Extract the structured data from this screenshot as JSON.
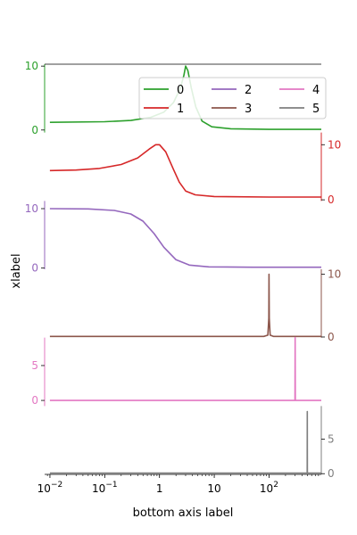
{
  "chart_data": {
    "type": "line",
    "xlabel": "bottom axis label",
    "ylabel": "xlabel",
    "xscale": "log",
    "xlim": [
      0.008,
      900
    ],
    "x_ticks": [
      {
        "value": 0.01,
        "base": "10",
        "exp": "−2"
      },
      {
        "value": 0.1,
        "base": "10",
        "exp": "−1"
      },
      {
        "value": 1,
        "base": "1",
        "exp": ""
      },
      {
        "value": 10,
        "base": "10",
        "exp": ""
      },
      {
        "value": 100,
        "base": "10",
        "exp": "2"
      }
    ],
    "legend": {
      "placement": "upper-right",
      "columns": 3
    },
    "series": [
      {
        "name": "0",
        "color": "#2ca02c",
        "axis_side": "left",
        "ylim": [
          -0.4,
          10.3
        ],
        "ticks": [
          {
            "value": 0,
            "label": "0"
          },
          {
            "value": 10,
            "label": "10"
          }
        ],
        "points": [
          [
            0.01,
            1.2
          ],
          [
            0.1,
            1.3
          ],
          [
            0.3,
            1.5
          ],
          [
            0.7,
            2.0
          ],
          [
            1.2,
            2.8
          ],
          [
            1.8,
            4.3
          ],
          [
            2.4,
            6.5
          ],
          [
            2.8,
            8.6
          ],
          [
            3.0,
            10.0
          ],
          [
            3.3,
            9.3
          ],
          [
            3.8,
            6.6
          ],
          [
            4.6,
            3.6
          ],
          [
            6,
            1.4
          ],
          [
            9,
            0.5
          ],
          [
            20,
            0.2
          ],
          [
            100,
            0.1
          ],
          [
            900,
            0.1
          ]
        ]
      },
      {
        "name": "1",
        "color": "#d62728",
        "axis_side": "right",
        "ylim": [
          -0.2,
          12.2
        ],
        "ticks": [
          {
            "value": 0,
            "label": "0"
          },
          {
            "value": 10,
            "label": "10"
          }
        ],
        "points": [
          [
            0.01,
            5.3
          ],
          [
            0.03,
            5.4
          ],
          [
            0.08,
            5.7
          ],
          [
            0.2,
            6.4
          ],
          [
            0.4,
            7.6
          ],
          [
            0.65,
            9.2
          ],
          [
            0.85,
            10.0
          ],
          [
            1.0,
            10.0
          ],
          [
            1.3,
            8.7
          ],
          [
            1.8,
            5.5
          ],
          [
            2.3,
            3.2
          ],
          [
            3.0,
            1.6
          ],
          [
            4.5,
            0.9
          ],
          [
            10,
            0.6
          ],
          [
            100,
            0.5
          ],
          [
            900,
            0.5
          ]
        ]
      },
      {
        "name": "2",
        "color": "#9467bd",
        "axis_side": "left",
        "ylim": [
          -0.2,
          11.3
        ],
        "ticks": [
          {
            "value": 0,
            "label": "0"
          },
          {
            "value": 10,
            "label": "10"
          }
        ],
        "points": [
          [
            0.01,
            10.0
          ],
          [
            0.05,
            9.95
          ],
          [
            0.15,
            9.7
          ],
          [
            0.3,
            9.1
          ],
          [
            0.5,
            7.9
          ],
          [
            0.8,
            5.8
          ],
          [
            1.2,
            3.5
          ],
          [
            2.0,
            1.4
          ],
          [
            3.5,
            0.5
          ],
          [
            8,
            0.2
          ],
          [
            50,
            0.15
          ],
          [
            900,
            0.15
          ]
        ]
      },
      {
        "name": "3",
        "color": "#8c564b",
        "axis_side": "right",
        "ylim": [
          -0.1,
          10.8
        ],
        "ticks": [
          {
            "value": 0,
            "label": "0"
          },
          {
            "value": 10,
            "label": "10"
          }
        ],
        "points": [
          [
            0.01,
            0.1
          ],
          [
            80,
            0.1
          ],
          [
            95,
            0.3
          ],
          [
            99,
            3.0
          ],
          [
            100,
            10.0
          ],
          [
            101,
            3.0
          ],
          [
            105,
            0.3
          ],
          [
            120,
            0.1
          ],
          [
            900,
            0.1
          ]
        ]
      },
      {
        "name": "4",
        "color": "#e377c2",
        "axis_side": "left",
        "ylim": [
          -0.8,
          9.0
        ],
        "ticks": [
          {
            "value": 0,
            "label": "0"
          },
          {
            "value": 5,
            "label": "5"
          }
        ],
        "points": [
          [
            0.01,
            0.0
          ],
          [
            250,
            0.0
          ],
          [
            298,
            0.0
          ],
          [
            300,
            9.0
          ],
          [
            302,
            0.0
          ],
          [
            900,
            0.0
          ]
        ]
      },
      {
        "name": "5",
        "color": "#7f7f7f",
        "axis_side": "right",
        "ylim": [
          -0.1,
          9.8
        ],
        "ticks": [
          {
            "value": 0,
            "label": "0"
          },
          {
            "value": 5,
            "label": "5"
          }
        ],
        "points": [
          [
            0.01,
            0.1
          ],
          [
            450,
            0.1
          ],
          [
            498,
            0.1
          ],
          [
            500,
            9.0
          ],
          [
            502,
            0.1
          ],
          [
            900,
            0.1
          ]
        ]
      }
    ]
  }
}
